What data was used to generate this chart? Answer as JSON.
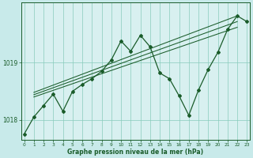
{
  "xlabel": "Graphe pression niveau de la mer (hPa)",
  "background_color": "#c8eaea",
  "plot_bg_color": "#d8f0f0",
  "grid_color": "#88ccbb",
  "line_color": "#1a5c2a",
  "ylim": [
    1017.65,
    1020.05
  ],
  "yticks": [
    1018,
    1019
  ],
  "xlim": [
    -0.3,
    23.3
  ],
  "x_ticks": [
    0,
    1,
    2,
    3,
    4,
    5,
    6,
    7,
    8,
    9,
    10,
    11,
    12,
    13,
    14,
    15,
    16,
    17,
    18,
    19,
    20,
    21,
    22,
    23
  ],
  "main_series_x": [
    0,
    1,
    2,
    3,
    4,
    5,
    6,
    7,
    8,
    9,
    10,
    11,
    12,
    13,
    14,
    15,
    16,
    17,
    18,
    19,
    20,
    21,
    22,
    23
  ],
  "main_series_y": [
    1017.75,
    1018.05,
    1018.25,
    1018.45,
    1018.15,
    1018.5,
    1018.62,
    1018.72,
    1018.85,
    1019.05,
    1019.38,
    1019.2,
    1019.48,
    1019.28,
    1018.82,
    1018.72,
    1018.42,
    1018.08,
    1018.52,
    1018.88,
    1019.18,
    1019.58,
    1019.82,
    1019.72
  ],
  "trend_lines": [
    {
      "x0": 1,
      "y0": 1018.48,
      "x1": 22,
      "y1": 1019.82
    },
    {
      "x0": 1,
      "y0": 1018.44,
      "x1": 22,
      "y1": 1019.72
    },
    {
      "x0": 1,
      "y0": 1018.4,
      "x1": 22,
      "y1": 1019.62
    }
  ]
}
